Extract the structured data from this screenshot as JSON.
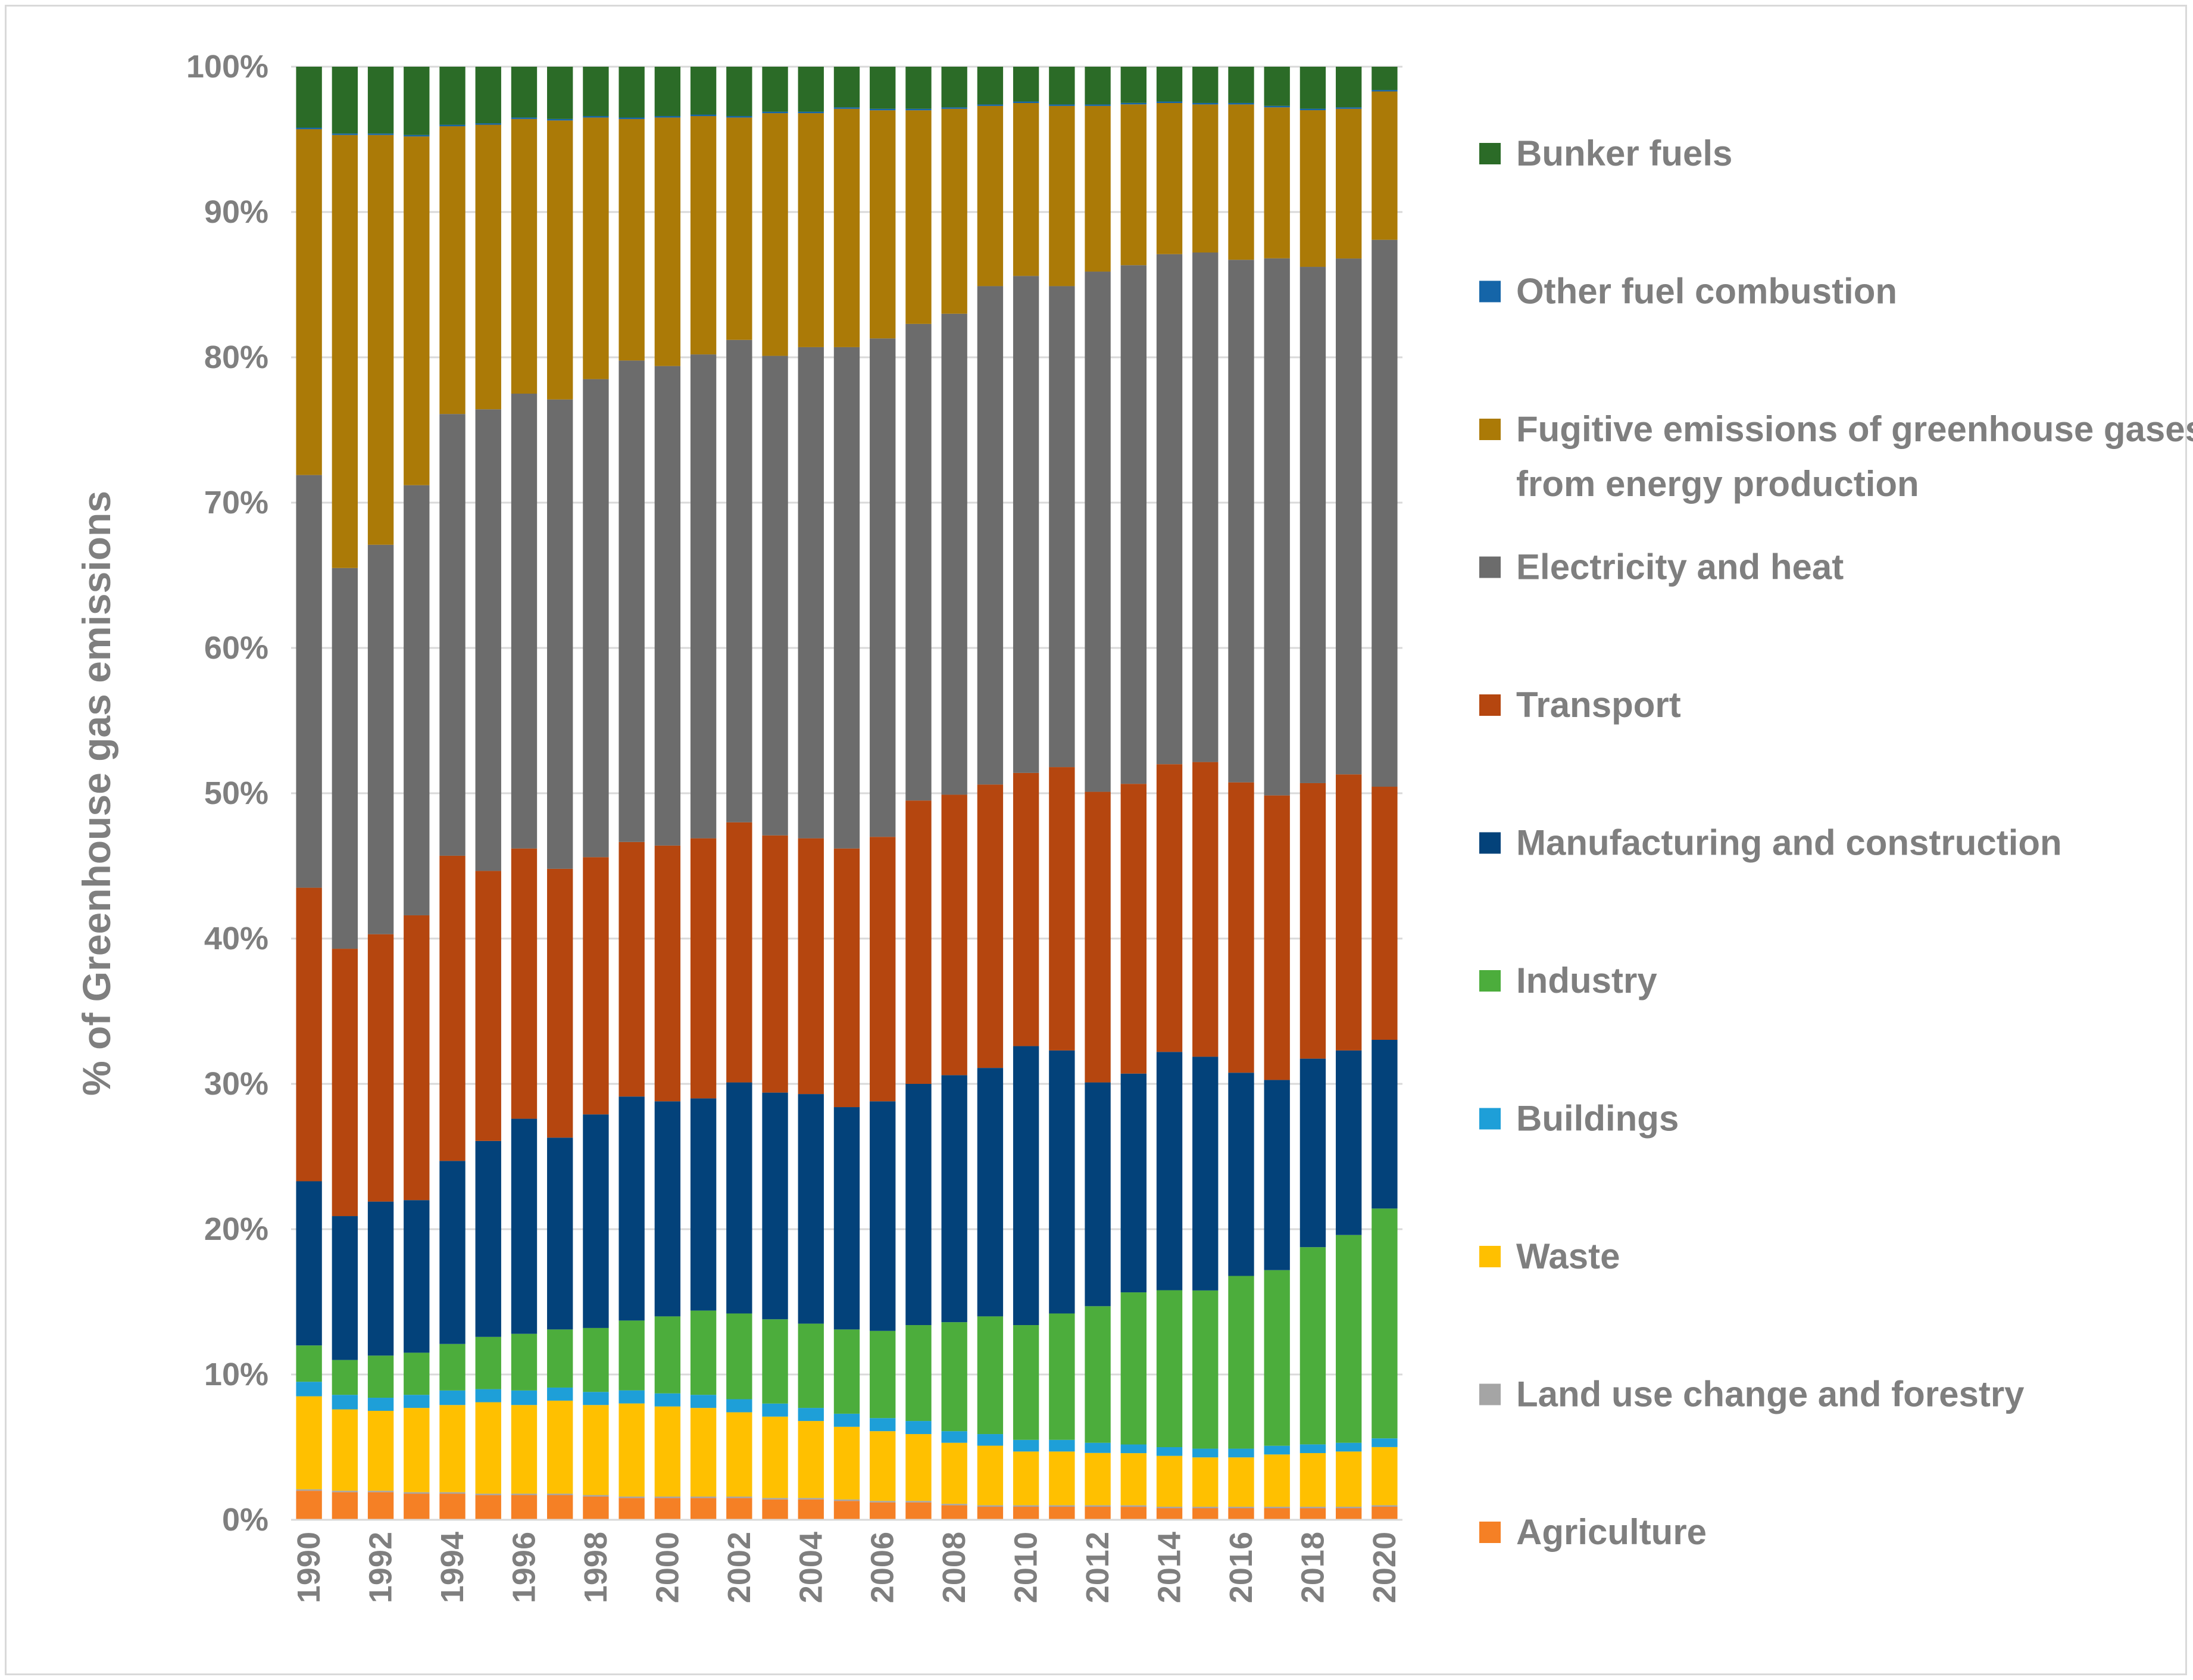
{
  "chart_data": {
    "type": "bar",
    "stacked": true,
    "percent_stacked": true,
    "title": "",
    "xlabel": "",
    "ylabel": "% of Greenhouse gas emissions",
    "ylim": [
      0,
      100
    ],
    "y_tick_labels": [
      "0%",
      "10%",
      "20%",
      "30%",
      "40%",
      "50%",
      "60%",
      "70%",
      "80%",
      "90%",
      "100%"
    ],
    "x_tick_labels": [
      "1990",
      "1992",
      "1994",
      "1996",
      "1998",
      "2000",
      "2002",
      "2004",
      "2006",
      "2008",
      "2010",
      "2012",
      "2014",
      "2016",
      "2018",
      "2020"
    ],
    "categories": [
      "1990",
      "1991",
      "1992",
      "1993",
      "1994",
      "1995",
      "1996",
      "1997",
      "1998",
      "1999",
      "2000",
      "2001",
      "2002",
      "2003",
      "2004",
      "2005",
      "2006",
      "2007",
      "2008",
      "2009",
      "2010",
      "2011",
      "2012",
      "2013",
      "2014",
      "2015",
      "2016",
      "2017",
      "2018",
      "2019",
      "2020"
    ],
    "grid": "horizontal",
    "legend_position": "right",
    "series": [
      {
        "name": "Agriculture",
        "color": "#f58025",
        "values": [
          2.0,
          1.9,
          1.9,
          1.8,
          1.8,
          1.7,
          1.7,
          1.7,
          1.6,
          1.5,
          1.5,
          1.5,
          1.5,
          1.4,
          1.4,
          1.3,
          1.2,
          1.2,
          1.0,
          0.9,
          0.9,
          0.9,
          0.9,
          0.9,
          0.8,
          0.8,
          0.8,
          0.8,
          0.8,
          0.8,
          0.9
        ]
      },
      {
        "name": "Land use change and forestry",
        "color": "#a5a5a5",
        "values": [
          0.1,
          0.1,
          0.1,
          0.1,
          0.1,
          0.1,
          0.1,
          0.1,
          0.1,
          0.1,
          0.1,
          0.1,
          0.1,
          0.1,
          0.1,
          0.1,
          0.1,
          0.1,
          0.1,
          0.1,
          0.1,
          0.1,
          0.1,
          0.1,
          0.1,
          0.1,
          0.1,
          0.1,
          0.1,
          0.1,
          0.1
        ]
      },
      {
        "name": "Waste",
        "color": "#ffc000",
        "values": [
          6.4,
          5.6,
          5.5,
          5.8,
          6.0,
          6.3,
          6.1,
          6.4,
          6.2,
          6.4,
          6.2,
          6.1,
          5.8,
          5.6,
          5.3,
          5.0,
          4.8,
          4.6,
          4.2,
          4.1,
          3.7,
          3.7,
          3.6,
          3.6,
          3.5,
          3.4,
          3.4,
          3.6,
          3.7,
          3.8,
          4.0
        ]
      },
      {
        "name": "Buildings",
        "color": "#1e9fd8",
        "values": [
          1.0,
          1.0,
          0.9,
          0.9,
          1.0,
          0.9,
          1.0,
          0.9,
          0.9,
          0.9,
          0.9,
          0.9,
          0.9,
          0.9,
          0.9,
          0.9,
          0.9,
          0.9,
          0.8,
          0.8,
          0.8,
          0.8,
          0.7,
          0.6,
          0.6,
          0.6,
          0.6,
          0.6,
          0.6,
          0.6,
          0.6
        ]
      },
      {
        "name": "Industry",
        "color": "#4cad3c",
        "values": [
          2.5,
          2.4,
          2.9,
          2.9,
          3.2,
          3.6,
          3.9,
          4.0,
          4.4,
          4.8,
          5.3,
          5.8,
          5.9,
          5.8,
          5.8,
          5.8,
          6.0,
          6.6,
          7.5,
          8.1,
          7.9,
          8.7,
          9.4,
          10.5,
          10.8,
          10.9,
          11.9,
          12.1,
          13.6,
          14.3,
          15.8
        ]
      },
      {
        "name": "Manufacturing and construction",
        "color": "#03427a",
        "values": [
          11.3,
          9.9,
          10.6,
          10.5,
          12.6,
          13.5,
          14.8,
          13.2,
          14.7,
          15.4,
          14.8,
          14.6,
          15.9,
          15.6,
          15.8,
          15.3,
          15.8,
          16.6,
          17.0,
          17.1,
          19.2,
          18.1,
          15.4,
          15.1,
          16.4,
          16.1,
          14.0,
          13.1,
          13.0,
          12.7,
          11.6
        ]
      },
      {
        "name": "Transport",
        "color": "#b5460f",
        "values": [
          20.2,
          18.4,
          18.4,
          19.6,
          21.0,
          18.6,
          18.6,
          18.5,
          17.7,
          17.5,
          17.6,
          17.9,
          17.9,
          17.7,
          17.6,
          17.8,
          18.2,
          19.5,
          19.3,
          19.5,
          18.8,
          19.5,
          20.0,
          20.0,
          19.8,
          20.3,
          20.0,
          19.6,
          19.0,
          19.0,
          17.4
        ]
      },
      {
        "name": "Electricity and heat",
        "color": "#6c6c6c",
        "values": [
          28.4,
          26.2,
          26.8,
          29.6,
          30.4,
          31.8,
          31.3,
          32.3,
          32.9,
          33.1,
          33.0,
          33.3,
          33.2,
          33.0,
          33.8,
          34.5,
          34.3,
          32.8,
          33.1,
          34.3,
          34.2,
          33.1,
          35.8,
          35.8,
          35.1,
          35.1,
          36.0,
          37.0,
          35.6,
          35.5,
          37.6
        ]
      },
      {
        "name": "Fugitive emissions of greenhouse gases from energy production",
        "color": "#ab7a07",
        "values": [
          23.8,
          29.8,
          28.2,
          24.0,
          19.8,
          19.6,
          18.9,
          19.2,
          18.0,
          16.6,
          17.1,
          16.4,
          15.3,
          16.7,
          16.1,
          16.4,
          15.7,
          14.7,
          14.1,
          12.4,
          11.9,
          12.4,
          11.4,
          11.1,
          10.4,
          10.2,
          10.7,
          10.4,
          10.8,
          10.3,
          10.2
        ]
      },
      {
        "name": "Other fuel combustion",
        "color": "#1565a8",
        "values": [
          0.1,
          0.1,
          0.1,
          0.1,
          0.1,
          0.1,
          0.1,
          0.1,
          0.1,
          0.1,
          0.1,
          0.1,
          0.1,
          0.1,
          0.1,
          0.1,
          0.1,
          0.1,
          0.1,
          0.1,
          0.1,
          0.1,
          0.1,
          0.1,
          0.1,
          0.1,
          0.1,
          0.1,
          0.1,
          0.1,
          0.1
        ]
      },
      {
        "name": "Bunker fuels",
        "color": "#2b6b27",
        "values": [
          4.2,
          4.6,
          4.6,
          4.7,
          4.0,
          3.9,
          3.5,
          3.6,
          3.4,
          3.5,
          3.4,
          3.3,
          3.4,
          3.1,
          3.1,
          2.8,
          2.9,
          2.9,
          2.8,
          2.6,
          2.4,
          2.6,
          2.6,
          2.5,
          2.4,
          2.5,
          2.5,
          2.7,
          2.9,
          2.8,
          1.6
        ]
      }
    ]
  }
}
